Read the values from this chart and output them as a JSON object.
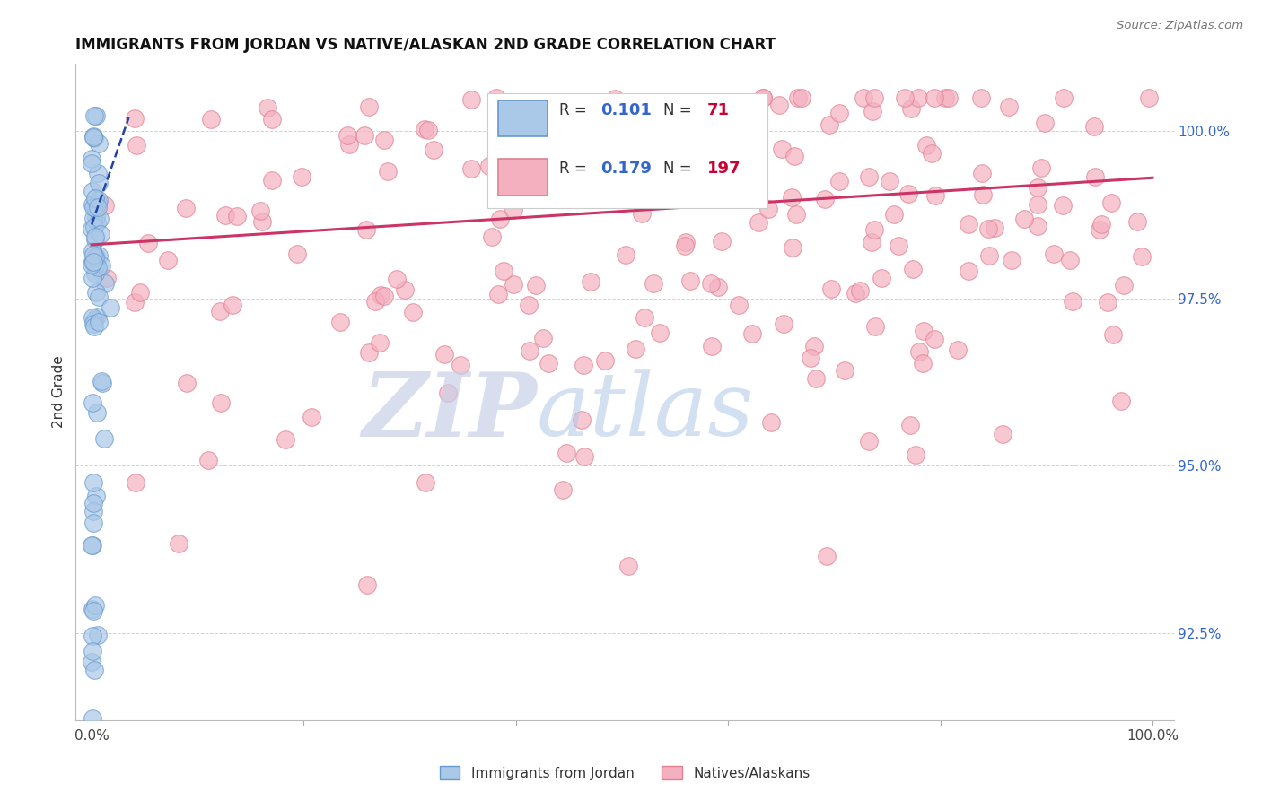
{
  "title": "IMMIGRANTS FROM JORDAN VS NATIVE/ALASKAN 2ND GRADE CORRELATION CHART",
  "source": "Source: ZipAtlas.com",
  "ylabel": "2nd Grade",
  "r_blue": "0.101",
  "n_blue": "71",
  "r_pink": "0.179",
  "n_pink": "197",
  "blue_fill": "#aac8e8",
  "blue_edge": "#6699cc",
  "pink_fill": "#f5b0c0",
  "pink_edge": "#e08090",
  "blue_line_color": "#2244aa",
  "pink_line_color": "#cc3366",
  "stat_r_color": "#3366cc",
  "stat_n_color": "#cc0033",
  "ytick_color": "#3366cc",
  "watermark_zip_color": "#c8d0e8",
  "watermark_atlas_color": "#b0c8e8",
  "xlim": [
    -1.5,
    102
  ],
  "ylim": [
    91.2,
    101.0
  ],
  "yticks": [
    92.5,
    95.0,
    97.5,
    100.0
  ]
}
